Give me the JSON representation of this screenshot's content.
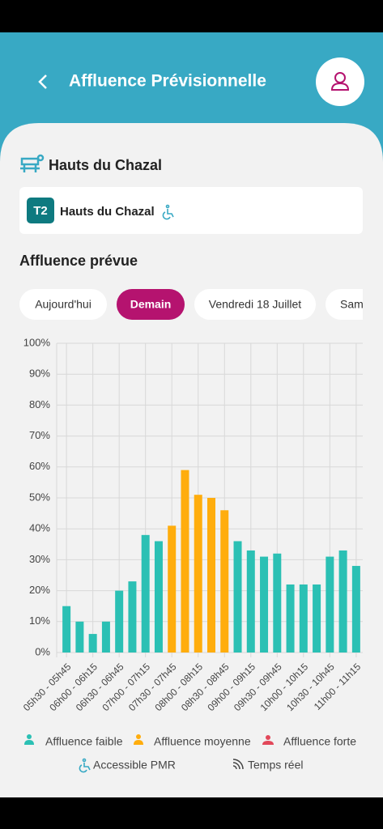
{
  "header": {
    "title": "Affluence Prévisionnelle"
  },
  "station": {
    "name": "Hauts du Chazal",
    "line": "T2",
    "stop": "Hauts du Chazal"
  },
  "section_title": "Affluence prévue",
  "days": [
    "Aujourd'hui",
    "Demain",
    "Vendredi 18 Juillet",
    "Sam"
  ],
  "selected_day": 1,
  "chart_data": {
    "type": "bar",
    "categories": [
      "05h30 - 05h45",
      null,
      "06h00 - 06h15",
      null,
      "06h30 - 06h45",
      null,
      "07h00 - 07h15",
      null,
      "07h30 - 07h45",
      null,
      "08h00 - 08h15",
      null,
      "08h30 - 08h45",
      null,
      "09h00 - 09h15",
      null,
      "09h30 - 09h45",
      null,
      "10h00 - 10h15",
      null,
      "10h30 - 10h45",
      null,
      "11h00 - 11h15"
    ],
    "values": [
      15,
      10,
      6,
      10,
      20,
      23,
      38,
      36,
      41,
      59,
      51,
      50,
      46,
      36,
      33,
      31,
      32,
      22,
      22,
      22,
      31,
      33,
      28
    ],
    "colors": [
      "#2bc0b4",
      "#2bc0b4",
      "#2bc0b4",
      "#2bc0b4",
      "#2bc0b4",
      "#2bc0b4",
      "#2bc0b4",
      "#2bc0b4",
      "#ffad0d",
      "#ffad0d",
      "#ffad0d",
      "#ffad0d",
      "#ffad0d",
      "#2bc0b4",
      "#2bc0b4",
      "#2bc0b4",
      "#2bc0b4",
      "#2bc0b4",
      "#2bc0b4",
      "#2bc0b4",
      "#2bc0b4",
      "#2bc0b4",
      "#2bc0b4"
    ],
    "ylim": [
      0,
      100
    ],
    "yticks": [
      {
        "value": 0,
        "label": "0%"
      },
      {
        "value": 10,
        "label": "10%"
      },
      {
        "value": 20,
        "label": "20%"
      },
      {
        "value": 30,
        "label": "30%"
      },
      {
        "value": 40,
        "label": "40%"
      },
      {
        "value": 50,
        "label": "50%"
      },
      {
        "value": 60,
        "label": "60%"
      },
      {
        "value": 70,
        "label": "70%"
      },
      {
        "value": 80,
        "label": "80%"
      },
      {
        "value": 90,
        "label": "90%"
      },
      {
        "value": 100,
        "label": "100%"
      }
    ],
    "grid": true
  },
  "legend": [
    "Affluence faible",
    "Affluence moyenne",
    "Affluence forte",
    "Accessible PMR",
    "Temps réel"
  ]
}
